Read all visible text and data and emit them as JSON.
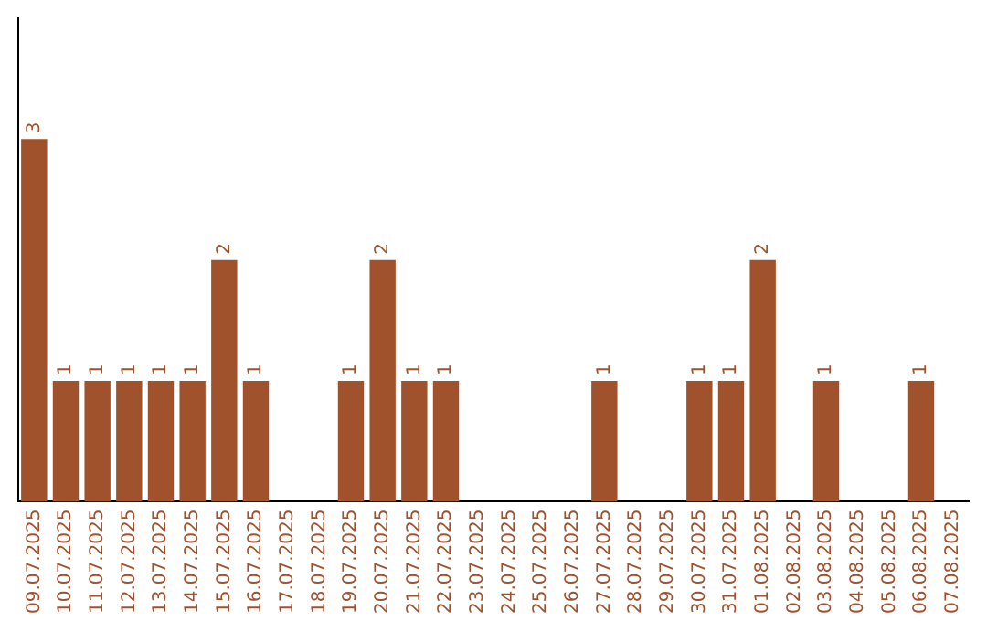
{
  "chart_data": {
    "type": "bar",
    "categories": [
      "09.07.2025",
      "10.07.2025",
      "11.07.2025",
      "12.07.2025",
      "13.07.2025",
      "14.07.2025",
      "15.07.2025",
      "16.07.2025",
      "17.07.2025",
      "18.07.2025",
      "19.07.2025",
      "20.07.2025",
      "21.07.2025",
      "22.07.2025",
      "23.07.2025",
      "24.07.2025",
      "25.07.2025",
      "26.07.2025",
      "27.07.2025",
      "28.07.2025",
      "29.07.2025",
      "30.07.2025",
      "31.07.2025",
      "01.08.2025",
      "02.08.2025",
      "03.08.2025",
      "04.08.2025",
      "05.08.2025",
      "06.08.2025",
      "07.08.2025"
    ],
    "values": [
      3,
      1,
      1,
      1,
      1,
      1,
      2,
      1,
      0,
      0,
      1,
      2,
      1,
      1,
      0,
      0,
      0,
      0,
      1,
      0,
      0,
      1,
      1,
      2,
      0,
      1,
      0,
      0,
      1,
      0
    ],
    "value_labels": [
      "3",
      "1",
      "1",
      "1",
      "1",
      "1",
      "2",
      "1",
      null,
      null,
      "1",
      "2",
      "1",
      "1",
      null,
      null,
      null,
      null,
      "1",
      null,
      null,
      "1",
      "1",
      "2",
      null,
      "1",
      null,
      null,
      "1",
      null
    ],
    "color": "#a0522d",
    "grid": false,
    "legend": false,
    "tick_labels": "x"
  }
}
